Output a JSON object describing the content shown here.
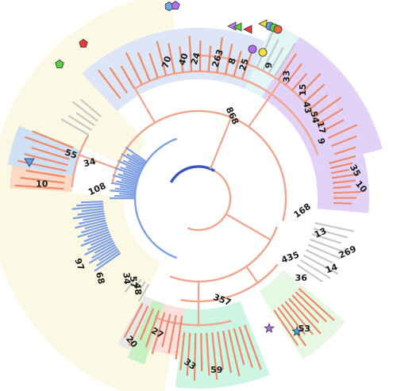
{
  "tree": {
    "colors": {
      "branch_salmon": "#f0a58c",
      "leaf_orange": "#ee8a6a",
      "leaf_blue": "#7f9fe3",
      "leaf_grey": "#c8c8c8",
      "root_blue": "#3a55c0",
      "clade_light_blue": "#dce6f7",
      "clade_cyan": "#e2f6f6",
      "clade_purple": "#e3d2f7",
      "clade_light_green": "#e6f8e3",
      "clade_mint": "#cdf5e3",
      "clade_pink": "#fde0de",
      "clade_green": "#c9f0c2",
      "clade_grey": "#e8e8e8",
      "clade_yellow": "#fbf8e3",
      "clade_peach": "#fcd9c4",
      "clade_blue": "#cfe0f5"
    },
    "labels": [
      {
        "text": "868",
        "angle": -68,
        "r": 112,
        "rot": 65
      },
      {
        "text": "25",
        "angle": -71,
        "r": 178,
        "rot": -72
      },
      {
        "text": "8",
        "angle": -76,
        "r": 178,
        "rot": -72
      },
      {
        "text": "263",
        "angle": -82,
        "r": 178,
        "rot": -72
      },
      {
        "text": "24",
        "angle": -91,
        "r": 176,
        "rot": -72
      },
      {
        "text": "40",
        "angle": -96,
        "r": 176,
        "rot": -72
      },
      {
        "text": "70",
        "angle": -103,
        "r": 176,
        "rot": -72
      },
      {
        "text": "9",
        "angle": -62,
        "r": 190,
        "rot": -90
      },
      {
        "text": "33",
        "angle": -54,
        "r": 190,
        "rot": -90
      },
      {
        "text": "15",
        "angle": -46,
        "r": 190,
        "rot": -90
      },
      {
        "text": "43",
        "angle": -40,
        "r": 178,
        "rot": 78
      },
      {
        "text": "54",
        "angle": -35,
        "r": 178,
        "rot": 78
      },
      {
        "text": "17",
        "angle": -30,
        "r": 178,
        "rot": 78
      },
      {
        "text": "9",
        "angle": -25,
        "r": 170,
        "rot": 78
      },
      {
        "text": "35",
        "angle": -10,
        "r": 200,
        "rot": 60
      },
      {
        "text": "10",
        "angle": -4,
        "r": 205,
        "rot": 50
      },
      {
        "text": "168",
        "angle": 7,
        "r": 132,
        "rot": -35
      },
      {
        "text": "13",
        "angle": 16,
        "r": 160,
        "rot": -25
      },
      {
        "text": "269",
        "angle": 20,
        "r": 200,
        "rot": -25
      },
      {
        "text": "14",
        "angle": 28,
        "r": 190,
        "rot": -20
      },
      {
        "text": "435",
        "angle": 33,
        "r": 138,
        "rot": -20
      },
      {
        "text": "36",
        "angle": 38,
        "r": 164,
        "rot": 0
      },
      {
        "text": "53",
        "angle": 51,
        "r": 212,
        "rot": 0
      },
      {
        "text": "357",
        "angle": 77,
        "r": 132,
        "rot": 20
      },
      {
        "text": "59",
        "angle": 84,
        "r": 218,
        "rot": 0
      },
      {
        "text": "33",
        "angle": 93,
        "r": 210,
        "rot": 35
      },
      {
        "text": "27",
        "angle": 107,
        "r": 178,
        "rot": 30
      },
      {
        "text": "20",
        "angle": 115,
        "r": 200,
        "rot": 50
      },
      {
        "text": "48",
        "angle": 124,
        "r": 138,
        "rot": 85
      },
      {
        "text": "57",
        "angle": 128,
        "r": 134,
        "rot": 85
      },
      {
        "text": "34",
        "angle": 132,
        "r": 136,
        "rot": 85
      },
      {
        "text": "68",
        "angle": 141,
        "r": 160,
        "rot": 75
      },
      {
        "text": "97",
        "angle": 151,
        "r": 172,
        "rot": 70
      },
      {
        "text": "108",
        "angle": 185,
        "r": 128,
        "rot": -25
      },
      {
        "text": "34",
        "angle": 198,
        "r": 144,
        "rot": -15
      },
      {
        "text": "10",
        "angle": -175,
        "r": 198,
        "rot": 0
      },
      {
        "text": "55",
        "angle": -161,
        "r": 170,
        "rot": 20
      }
    ]
  }
}
